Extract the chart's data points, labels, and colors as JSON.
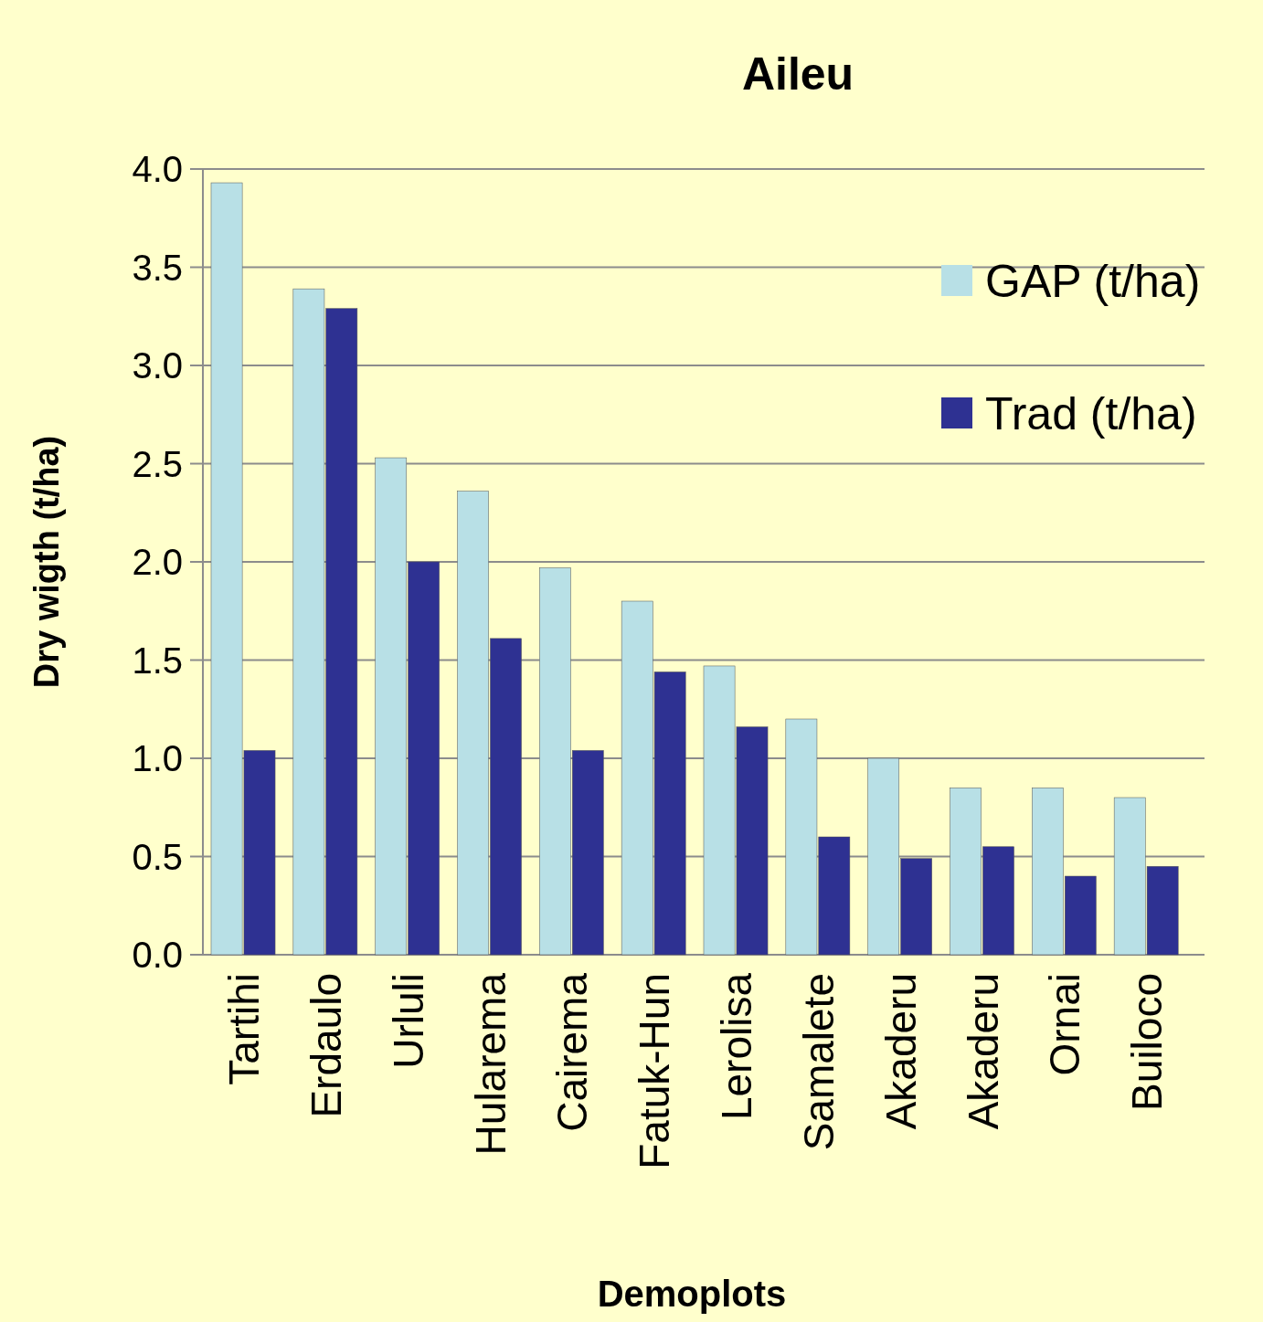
{
  "chart_data": {
    "type": "bar",
    "title": "Aileu",
    "xlabel": "Demoplots",
    "ylabel": "Dry wigth (t/ha)",
    "categories": [
      "Tartihi",
      "Erdaulo",
      "Urluli",
      "Hularema",
      "Cairema",
      "Fatuk-Hun",
      "Lerolisa",
      "Samalete",
      "Akaderu",
      "Akaderu",
      "Ornai",
      "Builoco"
    ],
    "series": [
      {
        "name": "GAP (t/ha)",
        "color": "#b8e0e6",
        "values": [
          3.93,
          3.39,
          2.53,
          2.36,
          1.97,
          1.8,
          1.47,
          1.2,
          1.0,
          0.85,
          0.85,
          0.8
        ]
      },
      {
        "name": "Trad (t/ha)",
        "color": "#2e3192",
        "values": [
          1.04,
          3.29,
          2.0,
          1.61,
          1.04,
          1.44,
          1.16,
          0.6,
          0.49,
          0.55,
          0.4,
          0.45
        ]
      }
    ],
    "ylim": [
      0,
      4
    ],
    "yticks": [
      {
        "value": 0,
        "label": "0.0"
      },
      {
        "value": 0.5,
        "label": "0.5"
      },
      {
        "value": 1,
        "label": "1.0"
      },
      {
        "value": 1.5,
        "label": "1.5"
      },
      {
        "value": 2,
        "label": "2.0"
      },
      {
        "value": 2.5,
        "label": "2.5"
      },
      {
        "value": 3,
        "label": "3.0"
      },
      {
        "value": 3.5,
        "label": "3.5"
      },
      {
        "value": 4,
        "label": "4.0"
      }
    ],
    "grid": "y",
    "legend": "right"
  }
}
